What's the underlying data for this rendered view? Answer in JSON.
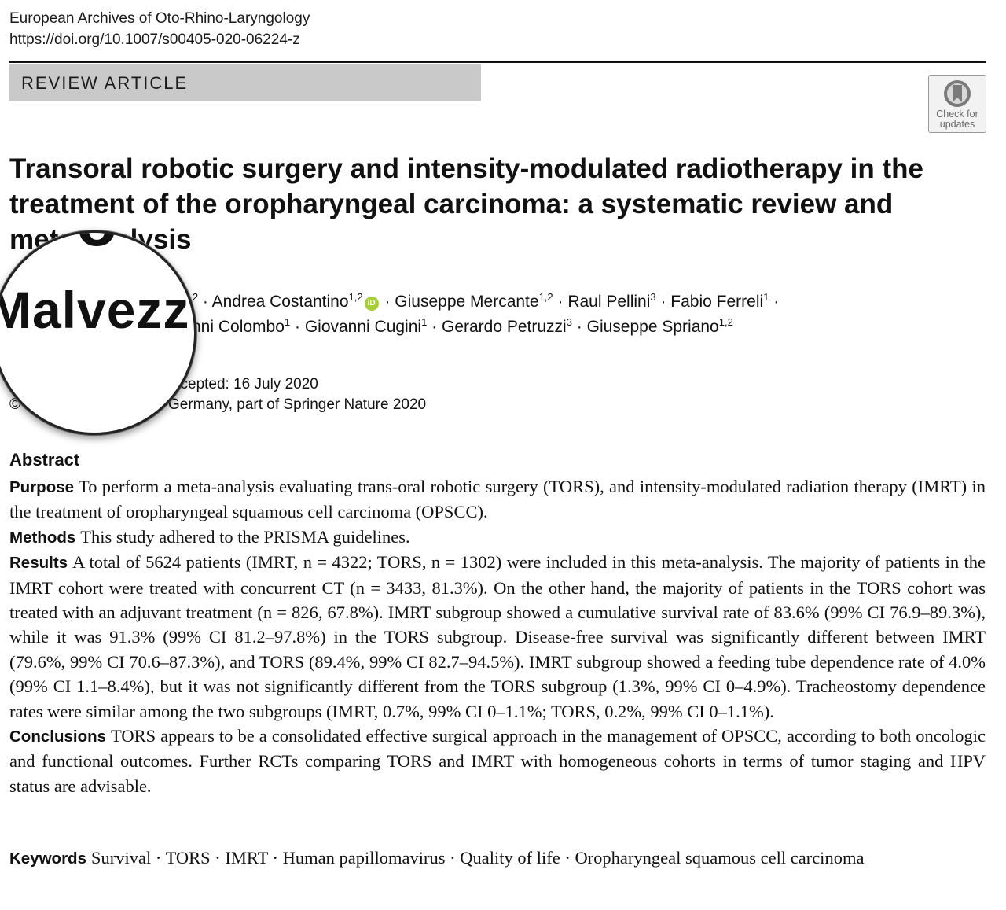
{
  "header": {
    "journal": "European Archives of Oto-Rhino-Laryngology",
    "doi": "https://doi.org/10.1007/s00405-020-06224-z"
  },
  "article_type": "REVIEW ARTICLE",
  "check_updates": {
    "line1": "Check for",
    "line2": "updates"
  },
  "title": "Transoral robotic surgery and intensity-modulated radiotherapy in the treatment of the oropharyngeal carcinoma: a systematic review and meta-analysis",
  "authors": {
    "line1": {
      "a1_aff": "1,2",
      "a2_name": "Andrea Costantino",
      "a2_aff": "1,2",
      "a3_name": "Giuseppe Mercante",
      "a3_aff": "1,2",
      "a4_name": "Raul Pellini",
      "a4_aff": "3",
      "a5_name": "Fabio Ferreli",
      "a5_aff": "1"
    },
    "line2": {
      "a6_partial": "nni Colombo",
      "a6_aff": "1",
      "a7_name": "Giovanni Cugini",
      "a7_aff": "1",
      "a8_name": "Gerardo Petruzzi",
      "a8_aff": "3",
      "a9_name": "Giuseppe Spriano",
      "a9_aff": "1,2"
    },
    "orcid_label": "iD"
  },
  "dates": {
    "accepted": "ccepted: 16 July 2020",
    "copyright_symbol": "©",
    "copyright": "Germany, part of Springer Nature 2020"
  },
  "magnifier": {
    "top_text": "o D",
    "text": "Malvezz"
  },
  "abstract": {
    "heading": "Abstract",
    "purpose_label": "Purpose",
    "purpose": "To perform a meta-analysis evaluating trans-oral robotic surgery (TORS), and intensity-modulated radiation therapy (IMRT) in the treatment of oropharyngeal squamous cell carcinoma (OPSCC).",
    "methods_label": "Methods",
    "methods": "This study adhered to the PRISMA guidelines.",
    "results_label": "Results",
    "results": "A total of 5624 patients (IMRT, n = 4322; TORS, n = 1302) were included in this meta-analysis. The majority of patients in the IMRT cohort were treated with concurrent CT (n = 3433, 81.3%). On the other hand, the majority of patients in the TORS cohort was treated with an adjuvant treatment (n = 826, 67.8%). IMRT subgroup showed a cumulative survival rate of 83.6% (99% CI 76.9–89.3%), while it was 91.3% (99% CI 81.2–97.8%) in the TORS subgroup. Disease-free survival was significantly different between IMRT (79.6%, 99% CI 70.6–87.3%), and TORS (89.4%, 99% CI 82.7–94.5%). IMRT subgroup showed a feeding tube dependence rate of 4.0% (99% CI 1.1–8.4%), but it was not significantly different from the TORS subgroup (1.3%, 99% CI 0–4.9%). Tracheostomy dependence rates were similar among the two subgroups (IMRT, 0.7%, 99% CI 0–1.1%; TORS, 0.2%, 99% CI 0–1.1%).",
    "conclusions_label": "Conclusions",
    "conclusions": "TORS appears to be a consolidated effective surgical approach in the management of OPSCC, according to both oncologic and functional outcomes. Further RCTs comparing TORS and IMRT with homogeneous cohorts in terms of tumor staging and HPV status are advisable."
  },
  "keywords": {
    "label": "Keywords",
    "text": "Survival · TORS · IMRT · Human papillomavirus · Quality of life · Oropharyngeal squamous cell carcinoma"
  }
}
